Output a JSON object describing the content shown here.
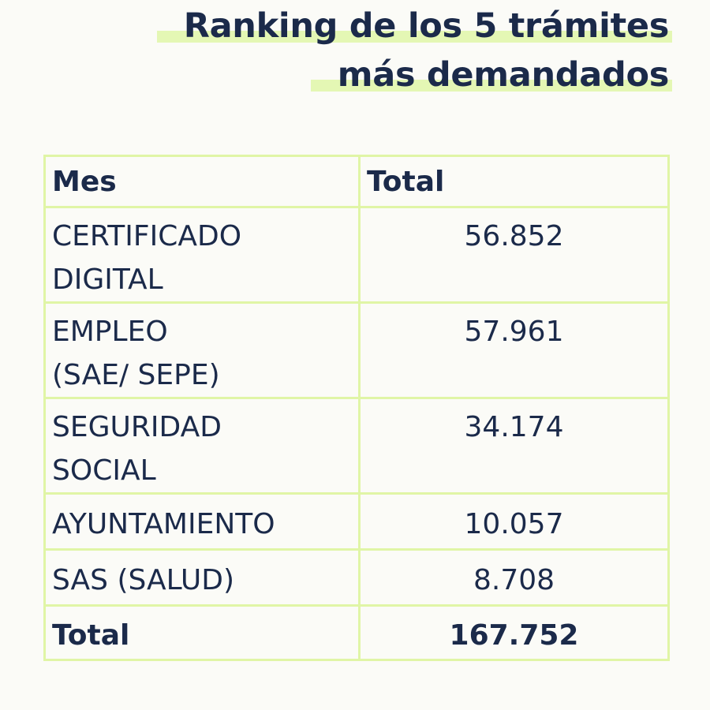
{
  "title": {
    "line1": "Ranking de los 5 trámites",
    "line2": "más demandados"
  },
  "colors": {
    "text": "#1b2a4a",
    "accent": "#e0f5a6",
    "background": "#fbfbf7"
  },
  "table": {
    "headers": [
      "Mes",
      "Total"
    ],
    "rows": [
      {
        "label_line1": "CERTIFICADO",
        "label_line2": "DIGITAL",
        "value": "56.852"
      },
      {
        "label_line1": "EMPLEO",
        "label_line2": "(SAE/ SEPE)",
        "value": "57.961"
      },
      {
        "label_line1": "SEGURIDAD",
        "label_line2": "SOCIAL",
        "value": "34.174"
      },
      {
        "label_line1": "AYUNTAMIENTO",
        "value": "10.057"
      },
      {
        "label_line1": "SAS (SALUD)",
        "value": "8.708"
      }
    ],
    "total": {
      "label": "Total",
      "value": "167.752"
    }
  }
}
